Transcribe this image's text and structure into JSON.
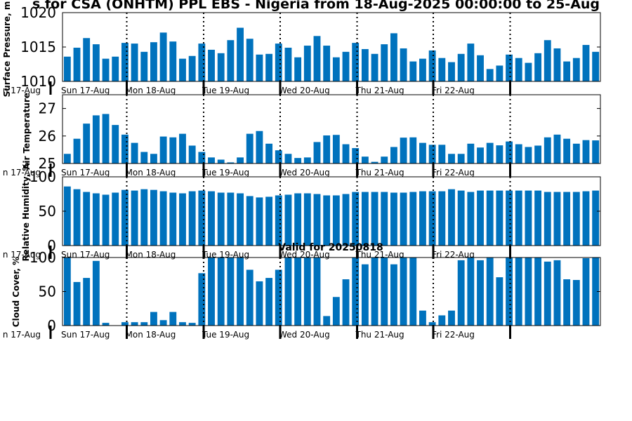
{
  "title": "s for CSA (ONHTM) PPL EBS  - Nigeria from 18-Aug-2025 00:00:00 to 25-Aug",
  "subtitle": "Valid for 20250818",
  "colors": {
    "bar": "#0072bd",
    "axis": "#000000"
  },
  "chart_data": [
    {
      "type": "bar",
      "ylabel": "Surface Pressure, m",
      "ylim": [
        1010,
        1020
      ],
      "yticks": [
        "1010",
        "1015",
        "1020"
      ],
      "ytick_values": [
        1010,
        1015,
        1020
      ],
      "day_labels": [
        "n 17-Aug",
        "Sun 17-Aug",
        "Mon 18-Aug",
        "Tue 19-Aug",
        "Wed 20-Aug",
        "Thu 21-Aug",
        "Fri 22-Aug"
      ],
      "values": [
        1013.6,
        1014.9,
        1016.3,
        1015.4,
        1013.3,
        1013.6,
        1015.6,
        1015.5,
        1014.3,
        1015.7,
        1017.1,
        1015.8,
        1013.3,
        1013.7,
        1015.5,
        1014.6,
        1014.1,
        1016.0,
        1017.8,
        1016.2,
        1013.9,
        1014.0,
        1015.5,
        1014.9,
        1013.5,
        1015.2,
        1016.6,
        1015.2,
        1013.5,
        1014.3,
        1015.6,
        1014.7,
        1014.0,
        1015.4,
        1017.0,
        1014.8,
        1012.9,
        1013.3,
        1014.5,
        1013.4,
        1012.8,
        1014.0,
        1015.5,
        1013.8,
        1011.8,
        1012.3,
        1013.9,
        1013.4,
        1012.7,
        1014.1,
        1016.0,
        1014.8,
        1012.9,
        1013.4,
        1015.3,
        1014.3
      ]
    },
    {
      "type": "bar",
      "ylabel": "Air Temperature",
      "ylim": [
        25,
        27.5
      ],
      "yticks": [
        "25",
        "26",
        "27"
      ],
      "ytick_values": [
        25,
        26,
        27
      ],
      "day_labels": [
        "n 17-Aug",
        "Sun 17-Aug",
        "Mon 18-Aug",
        "Tue 19-Aug",
        "Wed 20-Aug",
        "Thu 21-Aug",
        "Fri 22-Aug"
      ],
      "values": [
        25.35,
        25.9,
        26.45,
        26.75,
        26.8,
        26.4,
        26.05,
        25.75,
        25.42,
        25.35,
        25.98,
        25.95,
        26.08,
        25.65,
        25.42,
        25.22,
        25.14,
        25.04,
        25.22,
        26.08,
        26.18,
        25.72,
        25.48,
        25.35,
        25.2,
        25.22,
        25.78,
        26.02,
        26.04,
        25.7,
        25.56,
        25.25,
        25.06,
        25.25,
        25.6,
        25.94,
        25.95,
        25.75,
        25.68,
        25.68,
        25.35,
        25.35,
        25.72,
        25.58,
        25.75,
        25.66,
        25.8,
        25.7,
        25.6,
        25.65,
        25.95,
        26.05,
        25.9,
        25.72,
        25.85,
        25.84
      ]
    },
    {
      "type": "bar",
      "ylabel": "Relative Humidity, %",
      "ylim": [
        0,
        100
      ],
      "yticks": [
        "0",
        "50",
        "100"
      ],
      "ytick_values": [
        0,
        50,
        100
      ],
      "day_labels": [
        "n 17-Aug",
        "Sun 17-Aug",
        "Mon 18-Aug",
        "Tue 19-Aug",
        "Wed 20-Aug",
        "Thu 21-Aug",
        "Fri 22-Aug"
      ],
      "values": [
        86,
        82,
        78,
        76,
        74,
        77,
        81,
        80,
        82,
        81,
        79,
        77,
        76,
        79,
        80,
        79,
        77,
        77,
        76,
        72,
        70,
        71,
        73,
        74,
        76,
        76,
        75,
        73,
        73,
        75,
        78,
        78,
        78,
        78,
        77,
        77,
        78,
        79,
        79,
        79,
        82,
        80,
        78,
        80,
        80,
        80,
        80,
        80,
        80,
        80,
        78,
        78,
        78,
        78,
        79,
        80
      ]
    },
    {
      "type": "bar",
      "ylabel": "Cloud Cover, %",
      "ylim": [
        0,
        100
      ],
      "yticks": [
        "0",
        "50",
        "100"
      ],
      "ytick_values": [
        0,
        50,
        100
      ],
      "day_labels": [
        "n 17-Aug",
        "Sun 17-Aug",
        "Mon 18-Aug",
        "Tue 19-Aug",
        "Wed 20-Aug",
        "Thu 21-Aug",
        "Fri 22-Aug"
      ],
      "values": [
        100,
        64,
        70,
        95,
        4,
        0,
        5,
        5,
        5,
        20,
        8,
        20,
        5,
        4,
        77,
        100,
        100,
        100,
        100,
        82,
        65,
        70,
        82,
        100,
        100,
        100,
        100,
        14,
        42,
        68,
        100,
        90,
        100,
        100,
        90,
        100,
        100,
        22,
        5,
        15,
        22,
        96,
        100,
        96,
        100,
        71,
        100,
        100,
        100,
        100,
        94,
        96,
        68,
        67,
        99,
        100
      ]
    }
  ]
}
